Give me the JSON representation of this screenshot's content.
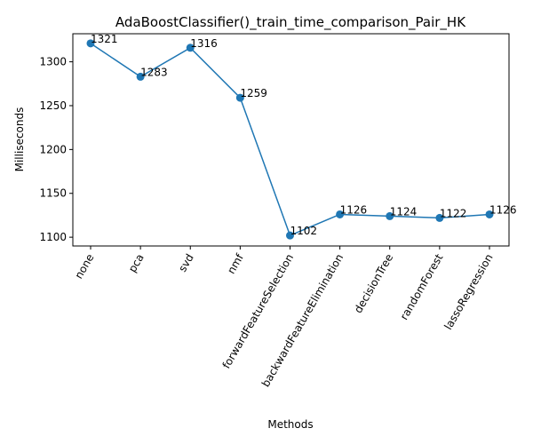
{
  "chart_data": {
    "type": "line",
    "title": "AdaBoostClassifier()_train_time_comparison_Pair_HK",
    "xlabel": "Methods",
    "ylabel": "Milliseconds",
    "categories": [
      "none",
      "pca",
      "svd",
      "nmf",
      "forwardFeatureSelection",
      "backwardFeatureElimination",
      "decisionTree",
      "randomForest",
      "lassoRegression"
    ],
    "values": [
      1321,
      1283,
      1316,
      1259,
      1102,
      1126,
      1124,
      1122,
      1126
    ],
    "data_labels": [
      "1321",
      "1283",
      "1316",
      "1259",
      "1102",
      "1126",
      "1124",
      "1122",
      "1126"
    ],
    "yticks": [
      1100,
      1150,
      1200,
      1250,
      1300
    ],
    "ylim": [
      1090,
      1332
    ],
    "grid": false,
    "line_color": "#1f77b4",
    "marker": "circle",
    "tick_rotation": "60 degrees"
  }
}
